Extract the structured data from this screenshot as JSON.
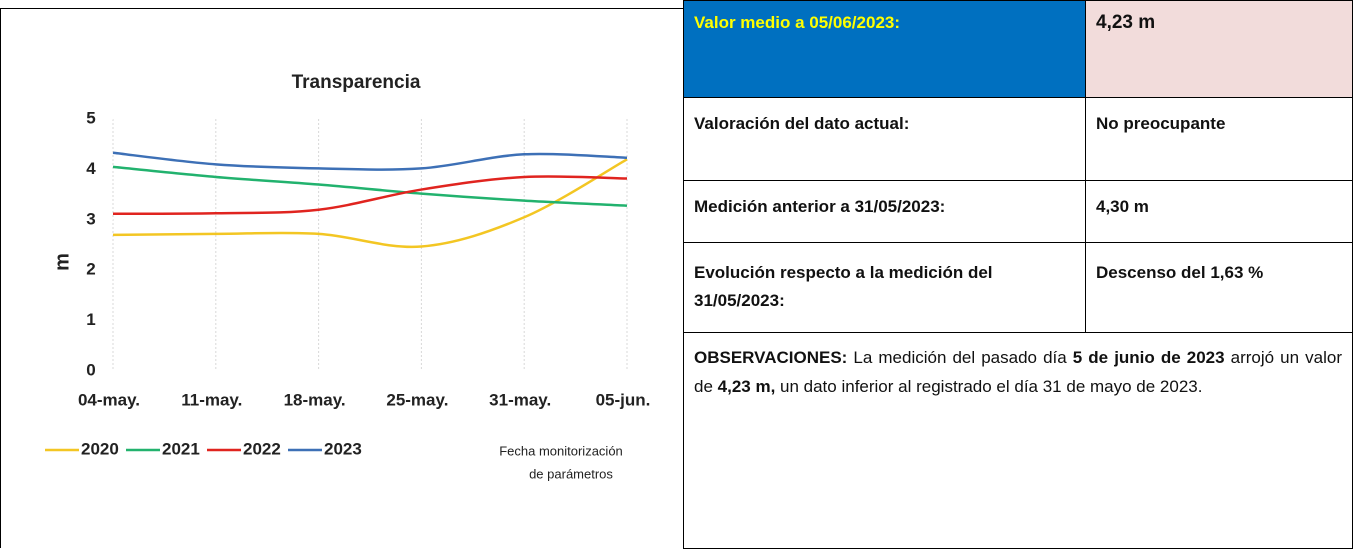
{
  "chart_data": {
    "type": "line",
    "title": "Transparencia",
    "y_label": "m",
    "x_label": [
      "Fecha monitorización",
      "de parámetros"
    ],
    "categories": [
      "04-may.",
      "11-may.",
      "18-may.",
      "25-may.",
      "31-may.",
      "05-jun."
    ],
    "series": [
      {
        "name": "2020",
        "color": "#f3c623",
        "values": [
          2.7,
          2.72,
          2.72,
          2.47,
          3.05,
          4.2
        ]
      },
      {
        "name": "2021",
        "color": "#22b26e",
        "values": [
          4.05,
          3.85,
          3.7,
          3.52,
          3.38,
          3.28
        ]
      },
      {
        "name": "2022",
        "color": "#e0241f",
        "values": [
          3.12,
          3.13,
          3.2,
          3.6,
          3.85,
          3.82
        ]
      },
      {
        "name": "2023",
        "color": "#3d70b6",
        "values": [
          4.33,
          4.1,
          4.02,
          4.02,
          4.3,
          4.23
        ]
      }
    ],
    "ylim": [
      0,
      5
    ],
    "yticks": [
      0,
      1,
      2,
      3,
      4,
      5
    ],
    "grid": true,
    "legend": "bottom"
  },
  "table": {
    "rows": [
      [
        "Valor medio a 05/06/2023:",
        "4,23 m"
      ],
      [
        "Valoración del dato actual:",
        "No preocupante"
      ],
      [
        "Medición anterior a 31/05/2023:",
        "4,30 m"
      ],
      [
        "Evolución respecto a la medición del 31/05/2023:",
        "Descenso del 1,63 %"
      ]
    ],
    "observations": [
      {
        "text": "OBSERVACIONES:",
        "bold": true
      },
      {
        "text": " La medición del pasado día ",
        "bold": false
      },
      {
        "text": "5 de junio de 2023",
        "bold": true
      },
      {
        "text": " arrojó un valor de ",
        "bold": false
      },
      {
        "text": "4,23 m,",
        "bold": true
      },
      {
        "text": " un dato inferior al registrado el día 31 de mayo de 2023.",
        "bold": false
      }
    ]
  }
}
